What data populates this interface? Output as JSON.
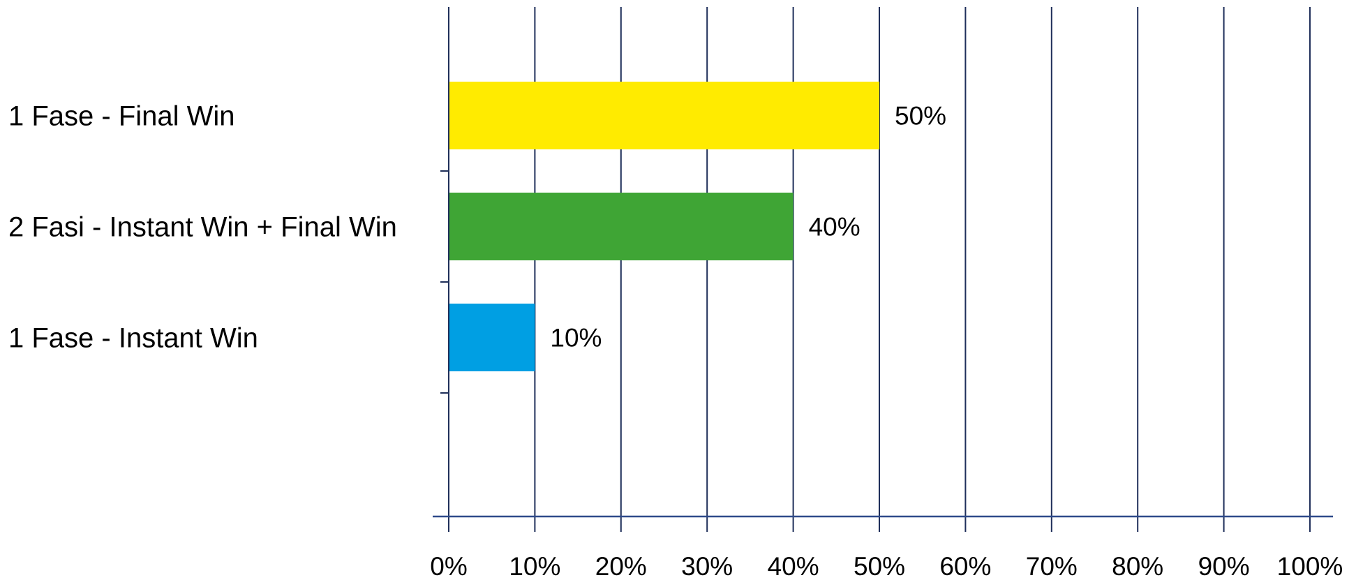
{
  "chart_data": {
    "type": "bar",
    "orientation": "horizontal",
    "categories": [
      "1 Fase - Final Win",
      "2 Fasi - Instant Win + Final Win",
      "1 Fase - Instant Win"
    ],
    "values": [
      50,
      40,
      10
    ],
    "data_labels": [
      "50%",
      "40%",
      "10%"
    ],
    "colors": [
      "#FFEB00",
      "#3FA535",
      "#009FE3"
    ],
    "xlim": [
      0,
      100
    ],
    "x_ticks": [
      0,
      10,
      20,
      30,
      40,
      50,
      60,
      70,
      80,
      90,
      100
    ],
    "x_tick_labels": [
      "0%",
      "10%",
      "20%",
      "30%",
      "40%",
      "50%",
      "60%",
      "70%",
      "80%",
      "90%",
      "100%"
    ],
    "grid": true,
    "grid_color": "#1F2F5A",
    "title": "",
    "xlabel": "",
    "ylabel": ""
  }
}
